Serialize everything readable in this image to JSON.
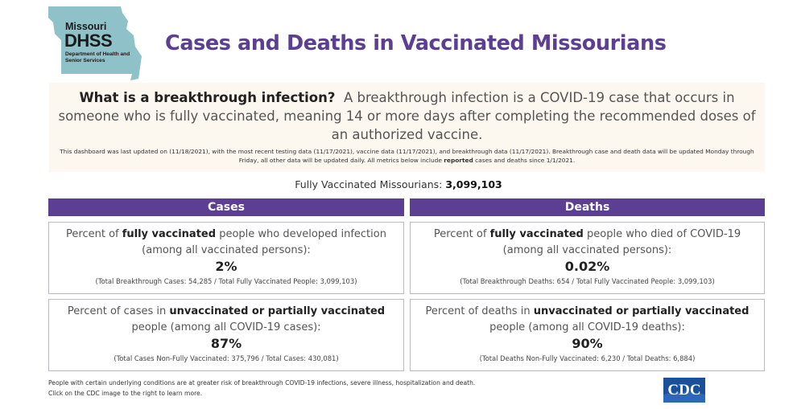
{
  "logo": {
    "line1": "Missouri",
    "line2": "DHSS",
    "line3": "Department of Health and Senior Services",
    "colors": {
      "shape": "#8fc1c8",
      "text": "#1a1a1a"
    }
  },
  "title": "Cases and Deaths in Vaccinated Missourians",
  "info": {
    "question": "What is a breakthrough infection?",
    "definition": "A breakthrough infection is a COVID-19 case that occurs in someone who is fully vaccinated, meaning 14 or more days after completing the recommended doses of an authorized vaccine.",
    "update_part1": "This dashboard was last updated on (11/18/2021), with the most recent testing data (11/17/2021), vaccine data (11/17/2021), and breakthrough data (11/17/2021). Breakthrough case and death data will be updated Monday through Friday, all other data will be updated daily. All metrics below include",
    "update_bold": "reported",
    "update_part2": "cases and deaths since 1/1/2021."
  },
  "fully_vaccinated": {
    "label": "Fully Vaccinated Missourians:",
    "value": "3,099,103"
  },
  "headers": {
    "cases": "Cases",
    "deaths": "Deaths"
  },
  "cards": {
    "cases_vax": {
      "pre": "Percent of",
      "bold": "fully vaccinated",
      "post": "people who developed infection (among all vaccinated persons):",
      "pct": "2%",
      "sub": "(Total Breakthrough Cases: 54,285 / Total Fully Vaccinated People: 3,099,103)"
    },
    "deaths_vax": {
      "pre": "Percent of",
      "bold": "fully vaccinated",
      "post": "people who died of COVID-19 (among all vaccinated persons):",
      "pct": "0.02%",
      "sub": "(Total Breakthrough Deaths: 654 / Total Fully Vaccinated People: 3,099,103)"
    },
    "cases_unvax": {
      "pre": "Percent of cases in",
      "bold": "unvaccinated or partially vaccinated",
      "post": "people (among all COVID-19 cases):",
      "pct": "87%",
      "sub": "(Total Cases Non-Fully Vaccinated: 375,796 / Total Cases: 430,081)"
    },
    "deaths_unvax": {
      "pre": "Percent of deaths in",
      "bold": "unvaccinated or partially vaccinated",
      "post": "people (among all COVID-19 deaths):",
      "pct": "90%",
      "sub": "(Total Deaths Non-Fully Vaccinated: 6,230 / Total Deaths: 6,884)"
    }
  },
  "footer": {
    "line1": "People with certain underlying conditions are at greater risk of breakthrough COVID-19 infections, severe illness, hospitalization and death.",
    "line2": "Click on the CDC image to the right to learn more."
  },
  "cdc_logo": {
    "text": "CDC",
    "color": "#1a4f9c"
  },
  "colors": {
    "accent": "#5c3f93",
    "info_bg": "#fcf7ef",
    "card_border": "#b9b9c9"
  }
}
